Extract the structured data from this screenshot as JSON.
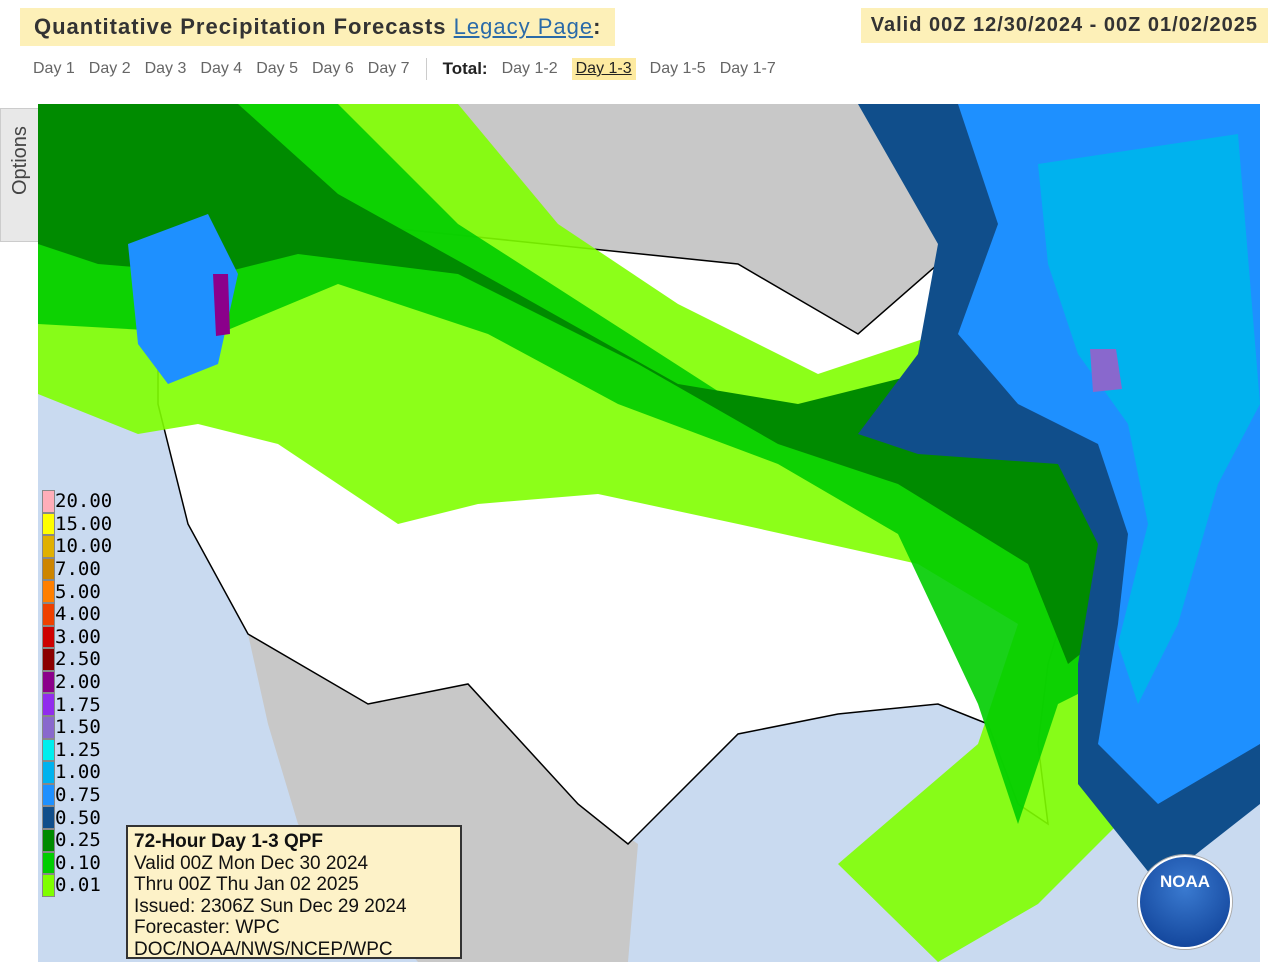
{
  "header": {
    "title": "Quantitative Precipitation Forecasts",
    "link": "Legacy Page",
    "colon": ":",
    "valid": "Valid 00Z 12/30/2024 - 00Z 01/02/2025"
  },
  "tabs": {
    "days": [
      "Day 1",
      "Day 2",
      "Day 3",
      "Day 4",
      "Day 5",
      "Day 6",
      "Day 7"
    ],
    "total_label": "Total:",
    "totals": [
      "Day 1-2",
      "Day 1-3",
      "Day 1-5",
      "Day 1-7"
    ],
    "selected": "Day 1-3"
  },
  "options": "Options",
  "legend": [
    {
      "label": "20.00",
      "color": "#ffaeb9"
    },
    {
      "label": "15.00",
      "color": "#ffff00"
    },
    {
      "label": "10.00",
      "color": "#e0b000"
    },
    {
      "label": "7.00",
      "color": "#cd8500"
    },
    {
      "label": "5.00",
      "color": "#ff7f00"
    },
    {
      "label": "4.00",
      "color": "#ee4000"
    },
    {
      "label": "3.00",
      "color": "#cd0000"
    },
    {
      "label": "2.50",
      "color": "#8b0000"
    },
    {
      "label": "2.00",
      "color": "#8b008b"
    },
    {
      "label": "1.75",
      "color": "#912cee"
    },
    {
      "label": "1.50",
      "color": "#8968cd"
    },
    {
      "label": "1.25",
      "color": "#00eeee"
    },
    {
      "label": "1.00",
      "color": "#00b2ee"
    },
    {
      "label": "0.75",
      "color": "#1e90ff"
    },
    {
      "label": "0.50",
      "color": "#104e8b"
    },
    {
      "label": "0.25",
      "color": "#008b00"
    },
    {
      "label": "0.10",
      "color": "#00cd00"
    },
    {
      "label": "0.01",
      "color": "#7fff00"
    }
  ],
  "info_box": {
    "title": "72-Hour Day 1-3 QPF",
    "lines": [
      "Valid 00Z Mon Dec 30 2024",
      "Thru 00Z Thu Jan 02 2025",
      "Issued: 2306Z Sun Dec 29 2024",
      "Forecaster: WPC",
      "DOC/NOAA/NWS/NCEP/WPC"
    ]
  },
  "logo": "NOAA"
}
